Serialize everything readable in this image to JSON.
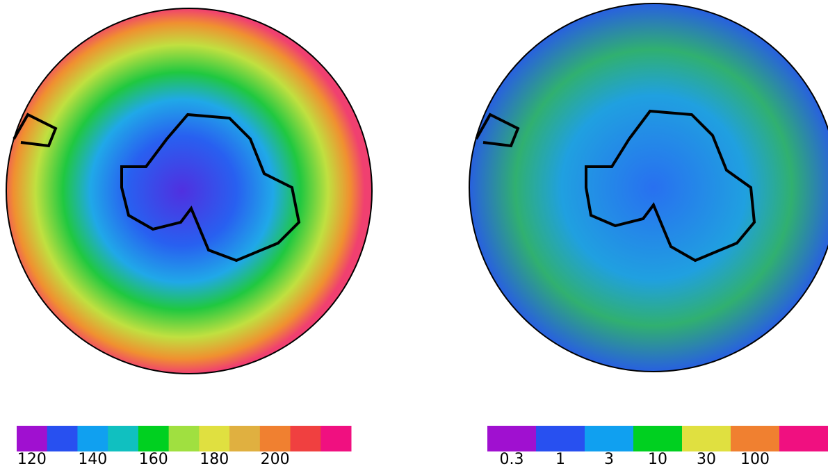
{
  "left_colorbar": {
    "colors": [
      "#a010d0",
      "#2850f0",
      "#10a0f0",
      "#10c0c0",
      "#00d020",
      "#a0e040",
      "#e0e040",
      "#e0b040",
      "#f08030",
      "#f04040",
      "#f01080"
    ],
    "labels": [
      "120",
      "140",
      "160",
      "180",
      "200"
    ]
  },
  "right_colorbar": {
    "colors": [
      "#a010d0",
      "#2850f0",
      "#10a0f0",
      "#00d020",
      "#e0e040",
      "#f08030",
      "#f01080"
    ],
    "labels": [
      "0.3",
      "1",
      "3",
      "10",
      "30",
      "100"
    ]
  }
}
